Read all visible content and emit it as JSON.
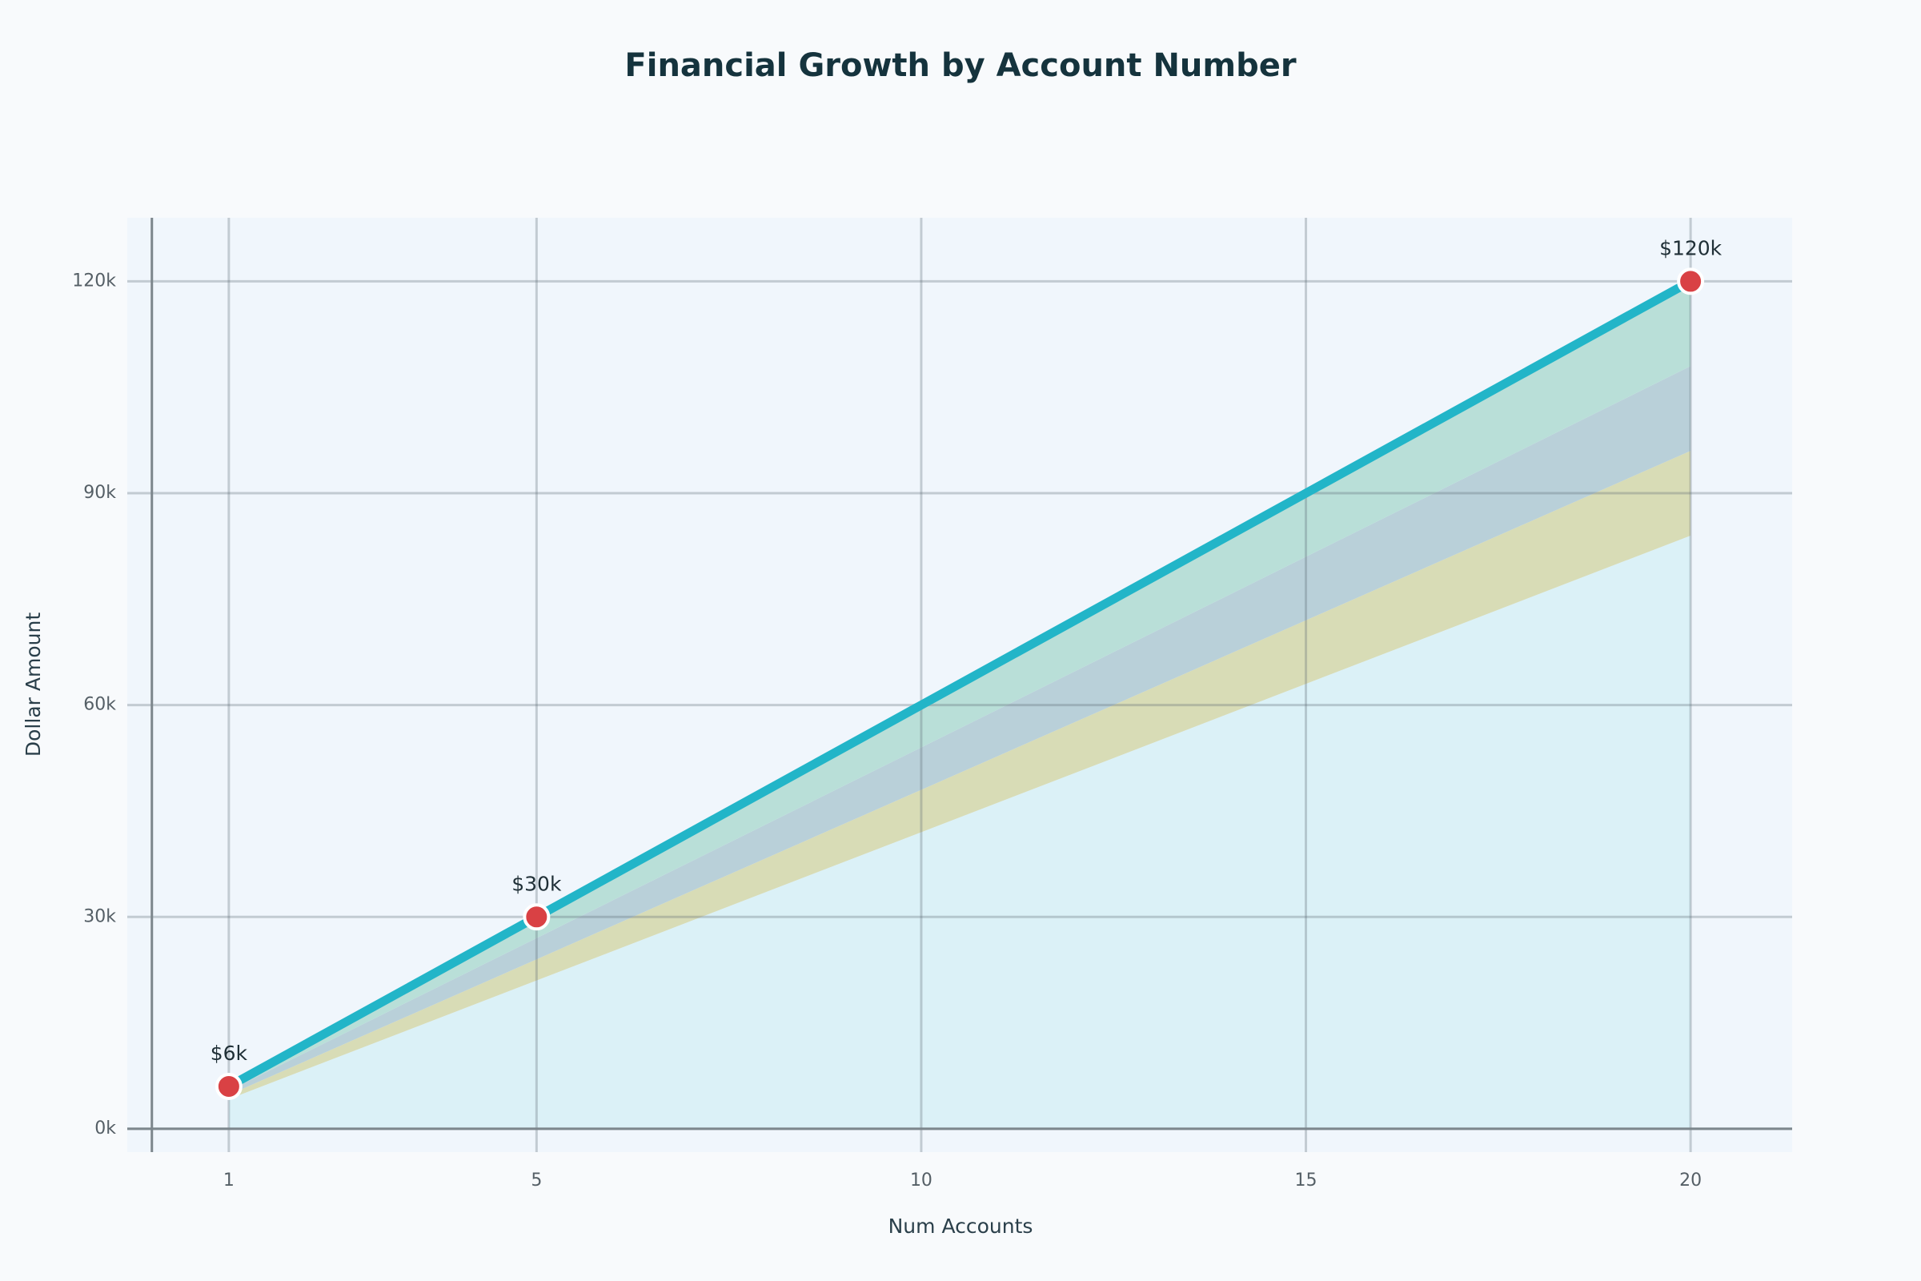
{
  "chart_data": {
    "type": "line",
    "title": "Financial Growth by Account Number",
    "x_label": "Num Accounts",
    "y_label": "Dollar Amount",
    "x": [
      1,
      5,
      20
    ],
    "series": [
      {
        "color": "#22b5c8",
        "marker_color": "#d94144",
        "values": [
          6000,
          30000,
          120000
        ],
        "value_labels": [
          "$6k",
          "$30k",
          "$120k"
        ]
      }
    ],
    "areas": [
      {
        "color": "#dbf1f7",
        "upper": [
          4200,
          21000,
          84000
        ]
      },
      {
        "color": "#d8dcb6",
        "lower": [
          4200,
          21000,
          84000
        ],
        "upper": [
          4800,
          24000,
          96000
        ]
      },
      {
        "color": "#b9d0d9",
        "lower": [
          4800,
          24000,
          96000
        ],
        "upper": [
          5400,
          27000,
          108000
        ]
      },
      {
        "color": "#b9dfd8",
        "lower": [
          5400,
          27000,
          108000
        ],
        "upper": [
          6000,
          30000,
          120000
        ]
      }
    ],
    "xlim": [
      -0.32,
      21.32
    ],
    "ylim": [
      -3300,
      129000
    ],
    "xticks": [
      1,
      5,
      10,
      15,
      20
    ],
    "yticks": [
      {
        "value": 0,
        "label": "0k"
      },
      {
        "value": 30000,
        "label": "30k"
      },
      {
        "value": 60000,
        "label": "60k"
      },
      {
        "value": 90000,
        "label": "90k"
      },
      {
        "value": 120000,
        "label": "120k"
      }
    ],
    "grid": true
  }
}
